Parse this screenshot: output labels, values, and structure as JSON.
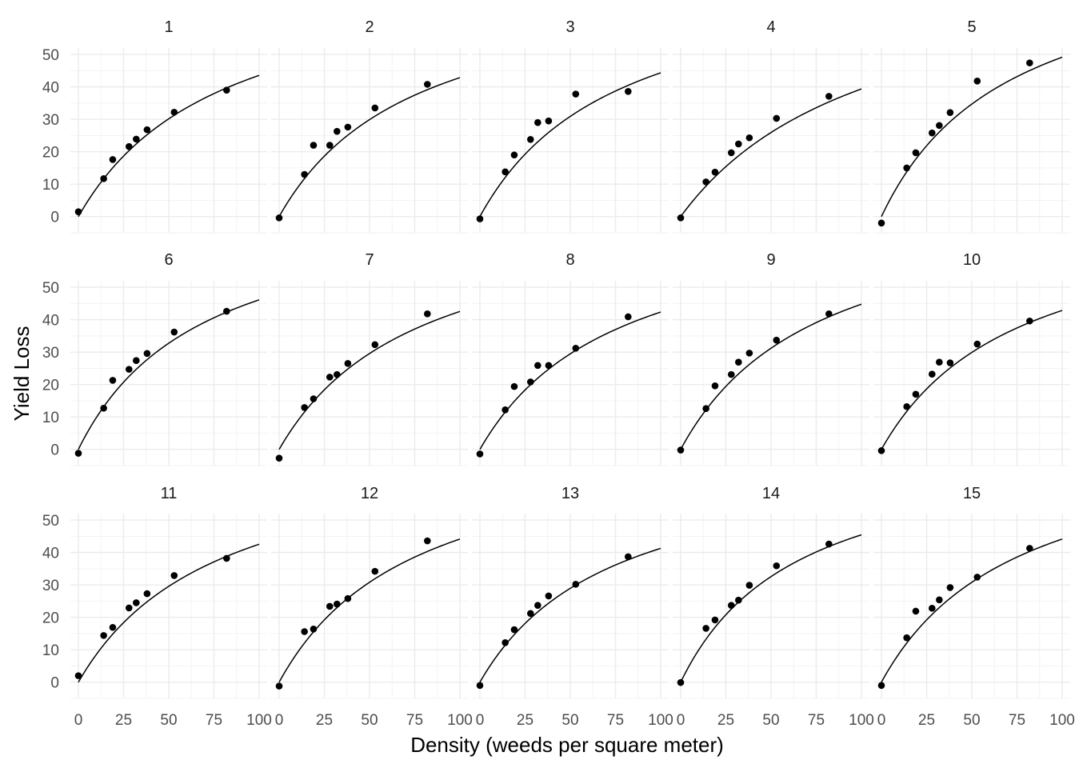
{
  "chart_data": {
    "type": "scatter",
    "facet_layout": {
      "rows": 3,
      "cols": 5
    },
    "xlabel": "Density (weeds per square meter)",
    "ylabel": "Yield Loss",
    "xlim": [
      0,
      100
    ],
    "ylim": [
      -5,
      52
    ],
    "x_ticks": [
      0,
      25,
      50,
      75,
      100
    ],
    "y_ticks": [
      0,
      10,
      20,
      30,
      40,
      50
    ],
    "grid": true,
    "legend": "none",
    "x": [
      0,
      14,
      19,
      28,
      32,
      38,
      53,
      82
    ],
    "panels": [
      {
        "label": "1",
        "y": [
          1.5,
          11.7,
          17.6,
          21.6,
          23.9,
          26.8,
          32.2,
          39.0
        ],
        "fit": {
          "a": 0.98,
          "b": 0.0125
        }
      },
      {
        "label": "2",
        "y": [
          -0.4,
          13.0,
          22.0,
          22.0,
          26.3,
          27.6,
          33.5,
          40.8
        ],
        "fit": {
          "a": 0.99,
          "b": 0.0131
        }
      },
      {
        "label": "3",
        "y": [
          -0.7,
          13.8,
          19.0,
          23.8,
          29.0,
          29.5,
          37.8,
          38.6
        ],
        "fit": {
          "a": 1.02,
          "b": 0.013
        }
      },
      {
        "label": "4",
        "y": [
          -0.4,
          10.7,
          13.7,
          19.7,
          22.4,
          24.3,
          30.3,
          37.1
        ],
        "fit": {
          "a": 0.76,
          "b": 0.0093
        }
      },
      {
        "label": "5",
        "y": [
          -2.0,
          15.0,
          19.7,
          25.8,
          28.1,
          32.1,
          41.8,
          47.4
        ],
        "fit": {
          "a": 1.18,
          "b": 0.014
        }
      },
      {
        "label": "6",
        "y": [
          -1.2,
          12.7,
          21.3,
          24.7,
          27.4,
          29.6,
          36.2,
          42.6
        ],
        "fit": {
          "a": 1.13,
          "b": 0.0145
        }
      },
      {
        "label": "7",
        "y": [
          -2.7,
          12.9,
          15.6,
          22.3,
          23.1,
          26.5,
          32.3,
          41.8
        ],
        "fit": {
          "a": 0.97,
          "b": 0.0128
        }
      },
      {
        "label": "8",
        "y": [
          -1.4,
          12.2,
          19.4,
          20.8,
          25.9,
          25.9,
          31.2,
          40.9
        ],
        "fit": {
          "a": 0.97,
          "b": 0.0129
        }
      },
      {
        "label": "9",
        "y": [
          -0.2,
          12.6,
          19.6,
          23.1,
          26.9,
          29.7,
          33.7,
          41.8
        ],
        "fit": {
          "a": 1.03,
          "b": 0.013
        }
      },
      {
        "label": "10",
        "y": [
          -0.4,
          13.2,
          17.0,
          23.2,
          26.9,
          26.7,
          32.5,
          39.6
        ],
        "fit": {
          "a": 0.99,
          "b": 0.0131
        }
      },
      {
        "label": "11",
        "y": [
          2.0,
          14.4,
          16.9,
          22.9,
          24.5,
          27.3,
          32.9,
          38.2
        ],
        "fit": {
          "a": 0.97,
          "b": 0.0128
        }
      },
      {
        "label": "12",
        "y": [
          -1.2,
          15.6,
          16.4,
          23.4,
          24.1,
          25.8,
          34.2,
          43.6
        ],
        "fit": {
          "a": 1.02,
          "b": 0.0131
        }
      },
      {
        "label": "13",
        "y": [
          -1.0,
          12.2,
          16.2,
          21.2,
          23.7,
          26.6,
          30.2,
          38.7
        ],
        "fit": {
          "a": 0.97,
          "b": 0.0135
        }
      },
      {
        "label": "14",
        "y": [
          -0.1,
          16.6,
          19.2,
          23.7,
          25.3,
          29.9,
          35.9,
          42.6
        ],
        "fit": {
          "a": 1.15,
          "b": 0.0153
        }
      },
      {
        "label": "15",
        "y": [
          -1.0,
          13.7,
          21.9,
          22.8,
          25.4,
          29.2,
          32.4,
          41.3
        ],
        "fit": {
          "a": 1.02,
          "b": 0.0131
        }
      }
    ]
  }
}
